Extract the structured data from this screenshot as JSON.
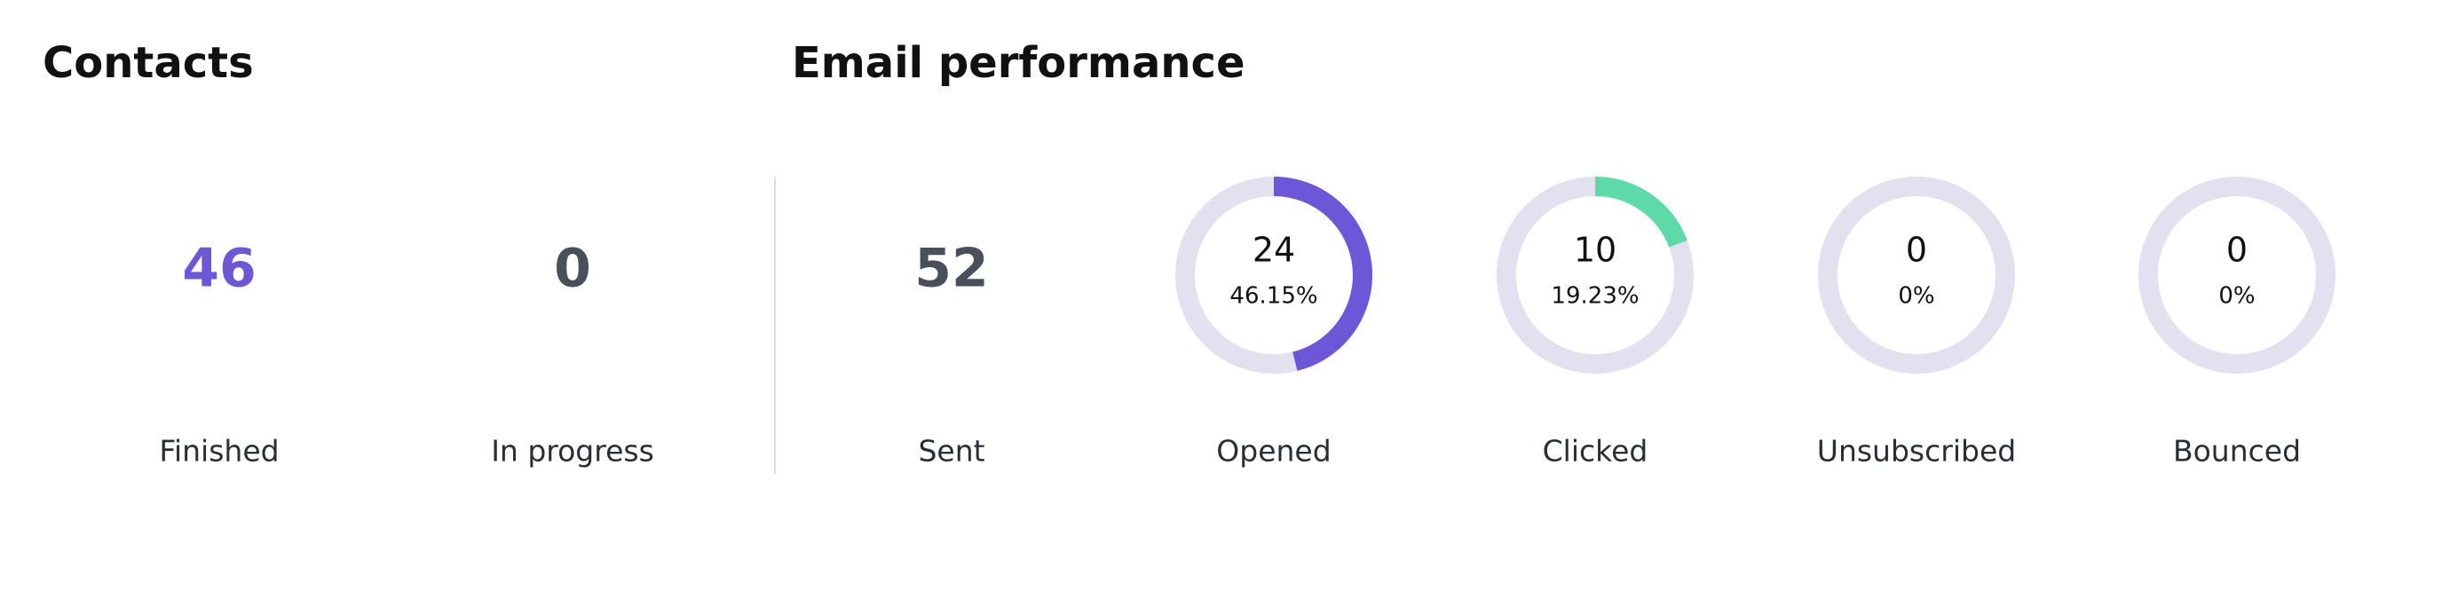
{
  "contacts": {
    "title": "Contacts",
    "items": [
      {
        "value": 46,
        "label": "Finished",
        "color": "#6e56d8"
      },
      {
        "value": 0,
        "label": "In progress",
        "color": "#4a4f5c"
      }
    ]
  },
  "email_performance": {
    "title": "Email performance",
    "track_color": "#e3e1ef",
    "items": [
      {
        "value": 52,
        "label": "Sent",
        "color": "#4a4f5c"
      },
      {
        "value": 24,
        "label": "Opened",
        "percent": 46.15,
        "percent_label": "46.15%",
        "color": "#6e56d8"
      },
      {
        "value": 10,
        "label": "Clicked",
        "percent": 19.23,
        "percent_label": "19.23%",
        "color": "#5edaa8"
      },
      {
        "value": 0,
        "label": "Unsubscribed",
        "percent": 0,
        "percent_label": "0%",
        "color": "#6e56d8"
      },
      {
        "value": 0,
        "label": "Bounced",
        "percent": 0,
        "percent_label": "0%",
        "color": "#6e56d8"
      }
    ]
  }
}
